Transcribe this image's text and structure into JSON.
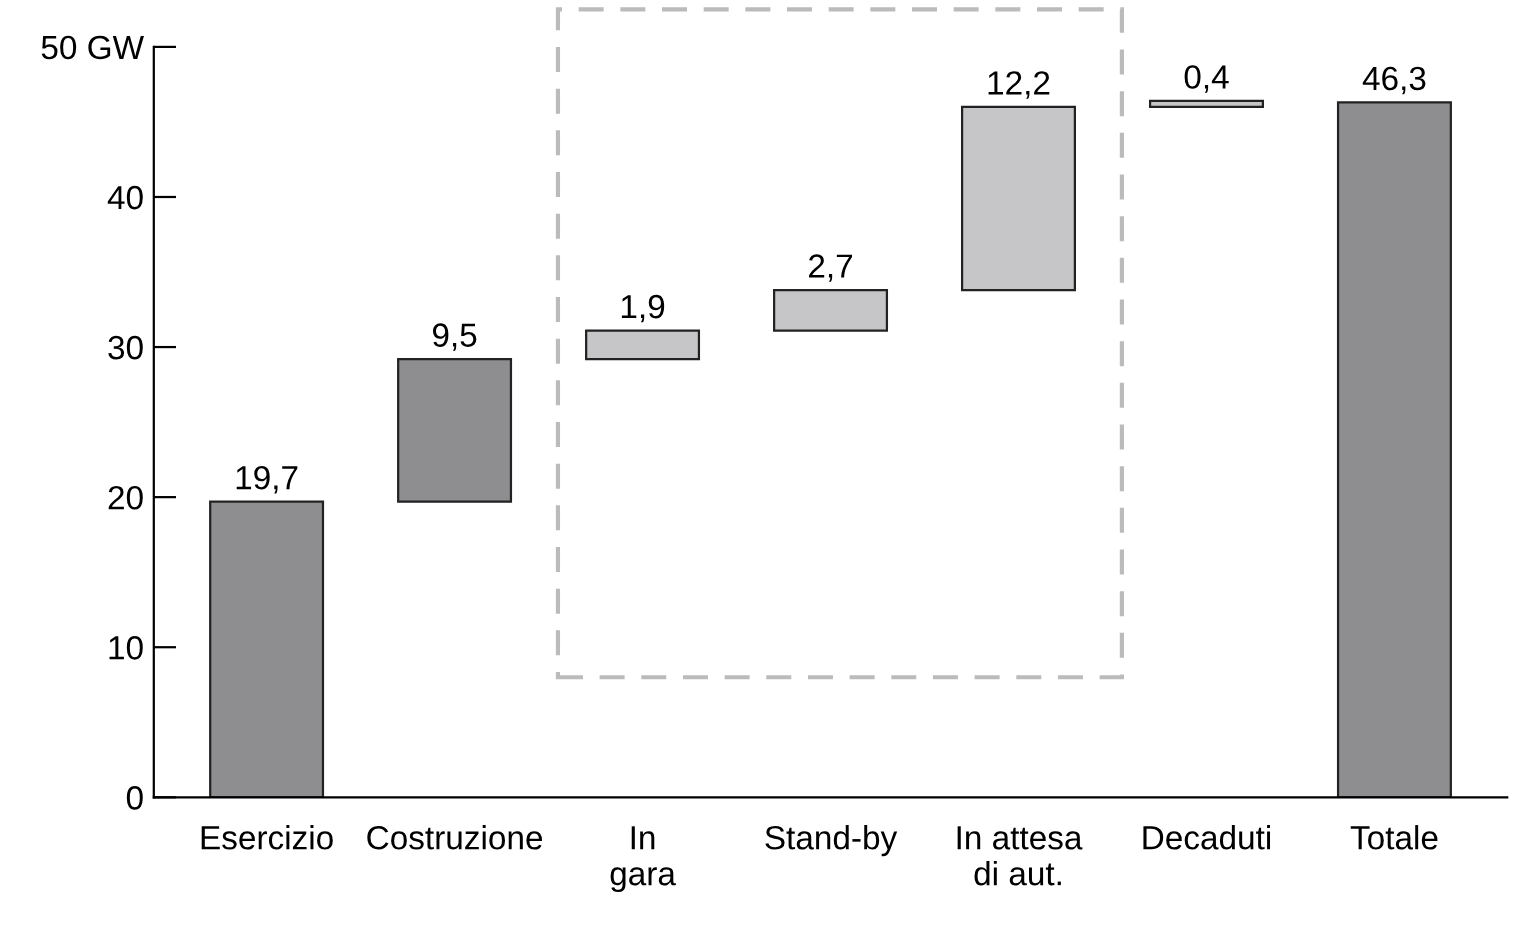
{
  "chart_data": {
    "type": "bar",
    "categories": [
      "Esercizio",
      "Costruzione",
      "In\ngara",
      "Stand-by",
      "In attesa\ndi aut.",
      "Decaduti",
      "Totale"
    ],
    "values": [
      19.7,
      9.5,
      1.9,
      2.7,
      12.2,
      0.4,
      46.3
    ],
    "base": [
      0,
      19.7,
      29.2,
      31.1,
      33.8,
      46.0,
      0
    ],
    "colors": [
      "#8e8e91",
      "#8e8e91",
      "#c6c6c8",
      "#c6c6c8",
      "#c6c6c8",
      "#c6c6c8",
      "#8e8e91"
    ],
    "value_labels": [
      "19,7",
      "9,5",
      "1,9",
      "2,7",
      "12,2",
      "0,4",
      "46,3"
    ],
    "ylim": [
      0,
      50
    ],
    "yticks": [
      0,
      10,
      20,
      30,
      40,
      {
        "value": 50,
        "label": "50 GW"
      }
    ],
    "grid": false,
    "legend": false
  }
}
